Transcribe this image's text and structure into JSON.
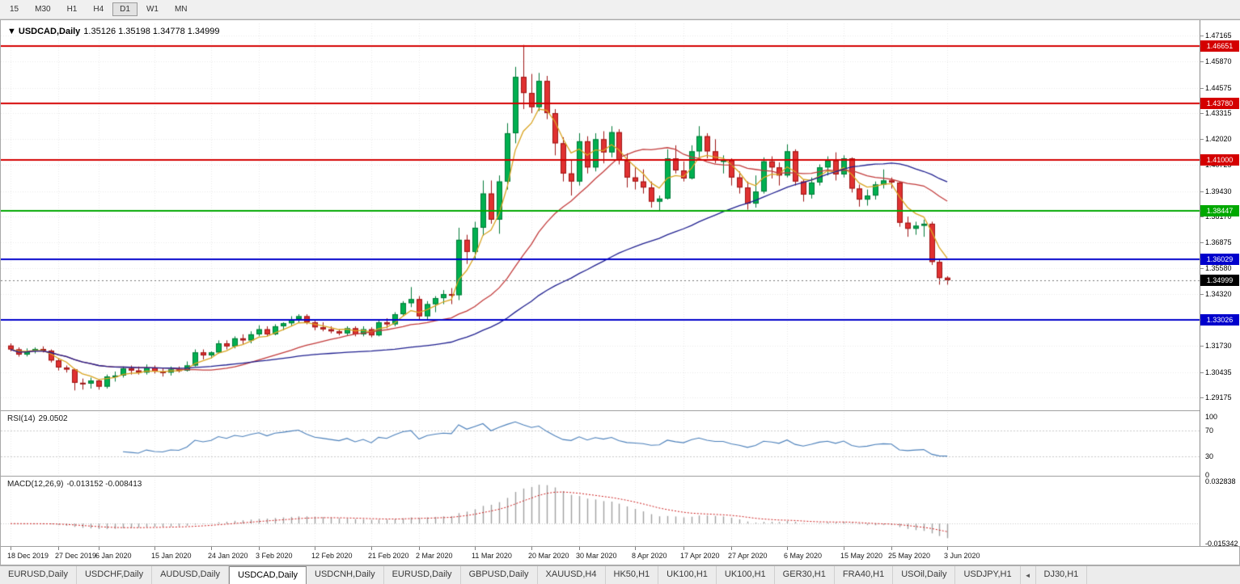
{
  "toolbar": {
    "timeframes": [
      "15",
      "M30",
      "H1",
      "H4",
      "D1",
      "W1",
      "MN"
    ],
    "active": "D1"
  },
  "chart": {
    "collapse_icon": "▼",
    "title": "USDCAD,Daily",
    "ohlc_text": "1.35126 1.35198 1.34778 1.34999"
  },
  "chart_data": {
    "type": "candlestick",
    "symbol": "USDCAD",
    "period": "Daily",
    "title": "USDCAD,Daily 1.35126 1.35198 1.34778 1.34999",
    "price_range": [
      1.2857,
      1.4777
    ],
    "y_ticks": [
      1.47165,
      1.4587,
      1.44575,
      1.43315,
      1.4202,
      1.40725,
      1.3943,
      1.3817,
      1.36875,
      1.3558,
      1.3432,
      1.3173,
      1.30435,
      1.29175
    ],
    "hlines": [
      {
        "value": 1.46651,
        "color": "#d40000"
      },
      {
        "value": 1.4378,
        "color": "#d40000"
      },
      {
        "value": 1.41,
        "color": "#d40000"
      },
      {
        "value": 1.38447,
        "color": "#00a800"
      },
      {
        "value": 1.36029,
        "color": "#0000cc"
      },
      {
        "value": 1.33026,
        "color": "#0000cc"
      }
    ],
    "current_price": {
      "value": 1.34999,
      "bg": "#000000"
    },
    "bull_color": "#00b050",
    "bull_stroke": "#007a38",
    "bear_color": "#e03131",
    "bear_stroke": "#9d1515",
    "ma": [
      {
        "type": "ema",
        "period": 5,
        "color": "#d9a421"
      },
      {
        "type": "sma",
        "period": 21,
        "color": "#c23b3b"
      },
      {
        "type": "sma",
        "period": 50,
        "color": "#1f1f8f"
      }
    ],
    "x_labels": [
      {
        "i": 0,
        "t": "18 Dec 2019"
      },
      {
        "i": 6,
        "t": "27 Dec 2019"
      },
      {
        "i": 11,
        "t": "6 Jan 2020"
      },
      {
        "i": 18,
        "t": "15 Jan 2020"
      },
      {
        "i": 25,
        "t": "24 Jan 2020"
      },
      {
        "i": 31,
        "t": "3 Feb 2020"
      },
      {
        "i": 38,
        "t": "12 Feb 2020"
      },
      {
        "i": 45,
        "t": "21 Feb 2020"
      },
      {
        "i": 51,
        "t": "2 Mar 2020"
      },
      {
        "i": 58,
        "t": "11 Mar 2020"
      },
      {
        "i": 65,
        "t": "20 Mar 2020"
      },
      {
        "i": 71,
        "t": "30 Mar 2020"
      },
      {
        "i": 78,
        "t": "8 Apr 2020"
      },
      {
        "i": 84,
        "t": "17 Apr 2020"
      },
      {
        "i": 90,
        "t": "27 Apr 2020"
      },
      {
        "i": 97,
        "t": "6 May 2020"
      },
      {
        "i": 104,
        "t": "15 May 2020"
      },
      {
        "i": 110,
        "t": "25 May 2020"
      },
      {
        "i": 117,
        "t": "3 Jun 2020"
      }
    ],
    "candles": [
      [
        1.3175,
        1.3186,
        1.3146,
        1.3156
      ],
      [
        1.3156,
        1.3166,
        1.312,
        1.313
      ],
      [
        1.313,
        1.3161,
        1.3121,
        1.3146
      ],
      [
        1.3146,
        1.3166,
        1.3136,
        1.3158
      ],
      [
        1.3158,
        1.3171,
        1.3141,
        1.315
      ],
      [
        1.315,
        1.3156,
        1.3091,
        1.3101
      ],
      [
        1.3101,
        1.3111,
        1.3051,
        1.3066
      ],
      [
        1.3066,
        1.3076,
        1.3041,
        1.3056
      ],
      [
        1.3056,
        1.3061,
        1.2952,
        1.299
      ],
      [
        1.299,
        1.3011,
        1.2956,
        1.2986
      ],
      [
        1.2986,
        1.3016,
        1.2961,
        1.3001
      ],
      [
        1.3001,
        1.3006,
        1.2956,
        1.2971
      ],
      [
        1.2971,
        1.3031,
        1.2961,
        1.3021
      ],
      [
        1.3021,
        1.3046,
        1.2996,
        1.3026
      ],
      [
        1.3026,
        1.3071,
        1.3016,
        1.3061
      ],
      [
        1.3061,
        1.3076,
        1.3031,
        1.3051
      ],
      [
        1.3051,
        1.3071,
        1.3031,
        1.3041
      ],
      [
        1.3041,
        1.3081,
        1.3031,
        1.3066
      ],
      [
        1.3066,
        1.3076,
        1.3036,
        1.3046
      ],
      [
        1.3046,
        1.3061,
        1.3021,
        1.3041
      ],
      [
        1.3041,
        1.3071,
        1.3026,
        1.3056
      ],
      [
        1.3056,
        1.3071,
        1.3041,
        1.3051
      ],
      [
        1.3051,
        1.3096,
        1.3046,
        1.3076
      ],
      [
        1.3076,
        1.3156,
        1.3071,
        1.3141
      ],
      [
        1.3141,
        1.3156,
        1.3106,
        1.3126
      ],
      [
        1.3126,
        1.3146,
        1.3111,
        1.3141
      ],
      [
        1.3141,
        1.3201,
        1.3136,
        1.3186
      ],
      [
        1.3186,
        1.3201,
        1.3156,
        1.3171
      ],
      [
        1.3171,
        1.3221,
        1.3161,
        1.3211
      ],
      [
        1.3211,
        1.3231,
        1.3181,
        1.3201
      ],
      [
        1.3201,
        1.3246,
        1.3186,
        1.3231
      ],
      [
        1.3231,
        1.3276,
        1.3221,
        1.3256
      ],
      [
        1.3256,
        1.3271,
        1.3221,
        1.3231
      ],
      [
        1.3231,
        1.3281,
        1.3226,
        1.3271
      ],
      [
        1.3271,
        1.3291,
        1.3251,
        1.3286
      ],
      [
        1.3286,
        1.3321,
        1.3271,
        1.3306
      ],
      [
        1.3306,
        1.3331,
        1.3291,
        1.3321
      ],
      [
        1.3321,
        1.3331,
        1.3281,
        1.3291
      ],
      [
        1.3291,
        1.3301,
        1.3251,
        1.3266
      ],
      [
        1.3266,
        1.3291,
        1.3246,
        1.3256
      ],
      [
        1.3256,
        1.3271,
        1.3236,
        1.3246
      ],
      [
        1.3246,
        1.3256,
        1.3226,
        1.3236
      ],
      [
        1.3236,
        1.3271,
        1.3226,
        1.3261
      ],
      [
        1.3261,
        1.3271,
        1.3221,
        1.3231
      ],
      [
        1.3231,
        1.3271,
        1.3221,
        1.3256
      ],
      [
        1.3256,
        1.3266,
        1.3216,
        1.3226
      ],
      [
        1.3226,
        1.3306,
        1.3221,
        1.3291
      ],
      [
        1.3291,
        1.3311,
        1.3261,
        1.3281
      ],
      [
        1.3281,
        1.3341,
        1.3271,
        1.3331
      ],
      [
        1.3331,
        1.3396,
        1.3321,
        1.3386
      ],
      [
        1.3386,
        1.3466,
        1.3366,
        1.3406
      ],
      [
        1.3406,
        1.3421,
        1.3306,
        1.3321
      ],
      [
        1.3321,
        1.3396,
        1.3301,
        1.3381
      ],
      [
        1.3381,
        1.3421,
        1.3341,
        1.3411
      ],
      [
        1.3411,
        1.3451,
        1.3381,
        1.3431
      ],
      [
        1.3431,
        1.3461,
        1.3381,
        1.3426
      ],
      [
        1.3426,
        1.3761,
        1.3401,
        1.3701
      ],
      [
        1.3701,
        1.3726,
        1.3581,
        1.3641
      ],
      [
        1.3641,
        1.3791,
        1.3601,
        1.3761
      ],
      [
        1.3761,
        1.3996,
        1.3721,
        1.3931
      ],
      [
        1.3931,
        1.3996,
        1.3781,
        1.3801
      ],
      [
        1.3801,
        1.4021,
        1.3731,
        1.3991
      ],
      [
        1.3991,
        1.4281,
        1.3951,
        1.4231
      ],
      [
        1.4231,
        1.4561,
        1.4181,
        1.4511
      ],
      [
        1.4511,
        1.467,
        1.4351,
        1.4431
      ],
      [
        1.4431,
        1.4526,
        1.4331,
        1.4361
      ],
      [
        1.4361,
        1.4531,
        1.4341,
        1.4491
      ],
      [
        1.4491,
        1.4516,
        1.4301,
        1.4331
      ],
      [
        1.4331,
        1.4351,
        1.4121,
        1.4181
      ],
      [
        1.4181,
        1.4211,
        1.3991,
        1.4031
      ],
      [
        1.4031,
        1.4101,
        1.3921,
        1.3991
      ],
      [
        1.3991,
        1.4231,
        1.3971,
        1.4191
      ],
      [
        1.4191,
        1.4216,
        1.4031,
        1.4061
      ],
      [
        1.4061,
        1.4231,
        1.4041,
        1.4201
      ],
      [
        1.4201,
        1.4241,
        1.4081,
        1.4136
      ],
      [
        1.4136,
        1.4266,
        1.4111,
        1.4236
      ],
      [
        1.4236,
        1.4251,
        1.4076,
        1.4096
      ],
      [
        1.4096,
        1.4131,
        1.3961,
        1.4011
      ],
      [
        1.4011,
        1.4061,
        1.3951,
        1.3991
      ],
      [
        1.3991,
        1.4051,
        1.3931,
        1.3961
      ],
      [
        1.3961,
        1.3991,
        1.3861,
        1.3891
      ],
      [
        1.3891,
        1.3921,
        1.3848,
        1.3906
      ],
      [
        1.3906,
        1.4151,
        1.3901,
        1.4106
      ],
      [
        1.4106,
        1.4171,
        1.4031,
        1.4046
      ],
      [
        1.4046,
        1.4091,
        1.3991,
        1.4006
      ],
      [
        1.4006,
        1.4171,
        1.4001,
        1.4141
      ],
      [
        1.4141,
        1.4266,
        1.4101,
        1.4216
      ],
      [
        1.4216,
        1.4231,
        1.4106,
        1.4141
      ],
      [
        1.4141,
        1.4201,
        1.4081,
        1.4096
      ],
      [
        1.4096,
        1.4121,
        1.4031,
        1.4096
      ],
      [
        1.4096,
        1.4106,
        1.3971,
        1.4011
      ],
      [
        1.4011,
        1.4041,
        1.3931,
        1.3961
      ],
      [
        1.3961,
        1.3991,
        1.3851,
        1.3881
      ],
      [
        1.3881,
        1.4021,
        1.3861,
        1.3941
      ],
      [
        1.3941,
        1.4111,
        1.3931,
        1.4091
      ],
      [
        1.4091,
        1.4116,
        1.4006,
        1.4061
      ],
      [
        1.4061,
        1.4086,
        1.3971,
        1.4021
      ],
      [
        1.4021,
        1.4176,
        1.4011,
        1.4141
      ],
      [
        1.4141,
        1.4151,
        1.3971,
        1.3991
      ],
      [
        1.3991,
        1.4001,
        1.3891,
        1.3926
      ],
      [
        1.3926,
        1.4011,
        1.3906,
        1.3986
      ],
      [
        1.3986,
        1.4076,
        1.3971,
        1.4061
      ],
      [
        1.4061,
        1.4116,
        1.4021,
        1.4096
      ],
      [
        1.4096,
        1.4136,
        1.3996,
        1.4026
      ],
      [
        1.4026,
        1.4121,
        1.4011,
        1.4106
      ],
      [
        1.4106,
        1.4111,
        1.3936,
        1.3956
      ],
      [
        1.3956,
        1.3976,
        1.3866,
        1.3901
      ],
      [
        1.3901,
        1.3951,
        1.3871,
        1.3921
      ],
      [
        1.3921,
        1.3991,
        1.3901,
        1.3976
      ],
      [
        1.3976,
        1.4051,
        1.3956,
        1.3996
      ],
      [
        1.3996,
        1.4011,
        1.3956,
        1.3986
      ],
      [
        1.3986,
        1.3991,
        1.3766,
        1.3786
      ],
      [
        1.3786,
        1.3816,
        1.3716,
        1.3756
      ],
      [
        1.3756,
        1.3791,
        1.3726,
        1.3771
      ],
      [
        1.3771,
        1.3801,
        1.3716,
        1.3781
      ],
      [
        1.3781,
        1.3791,
        1.3576,
        1.3591
      ],
      [
        1.3591,
        1.3606,
        1.3478,
        1.3511
      ],
      [
        1.35126,
        1.35198,
        1.34778,
        1.34999
      ]
    ],
    "rsi": {
      "label": "RSI(14)",
      "value": "29.0502",
      "period": 14,
      "color": "#4a7fba",
      "levels": [
        70,
        30
      ],
      "axis_labels": [
        100,
        70,
        30,
        0
      ],
      "range": [
        0,
        100
      ]
    },
    "macd": {
      "label": "MACD(12,26,9)",
      "values_text": "-0.013152 -0.008413",
      "fast": 12,
      "slow": 26,
      "signal": 9,
      "hist_color": "#a0a0a0",
      "signal_color": "#cc1f1f",
      "range": [
        -0.0175,
        0.036
      ],
      "axis_labels": [
        "0.032838",
        "-0.015342"
      ],
      "axis_values": [
        0.032838,
        -0.015342
      ]
    }
  },
  "tabbar": {
    "tabs": [
      "EURUSD,Daily",
      "USDCHF,Daily",
      "AUDUSD,Daily",
      "USDCAD,Daily",
      "USDCNH,Daily",
      "EURUSD,Daily",
      "GBPUSD,Daily",
      "XAUUSD,H4",
      "HK50,H1",
      "UK100,H1",
      "UK100,H1",
      "GER30,H1",
      "FRA40,H1",
      "USOil,Daily",
      "USDJPY,H1",
      "DJ30,H1"
    ],
    "active_index": 3,
    "scroll_left_icon": "◄",
    "scroll_arrow_index": 15
  }
}
